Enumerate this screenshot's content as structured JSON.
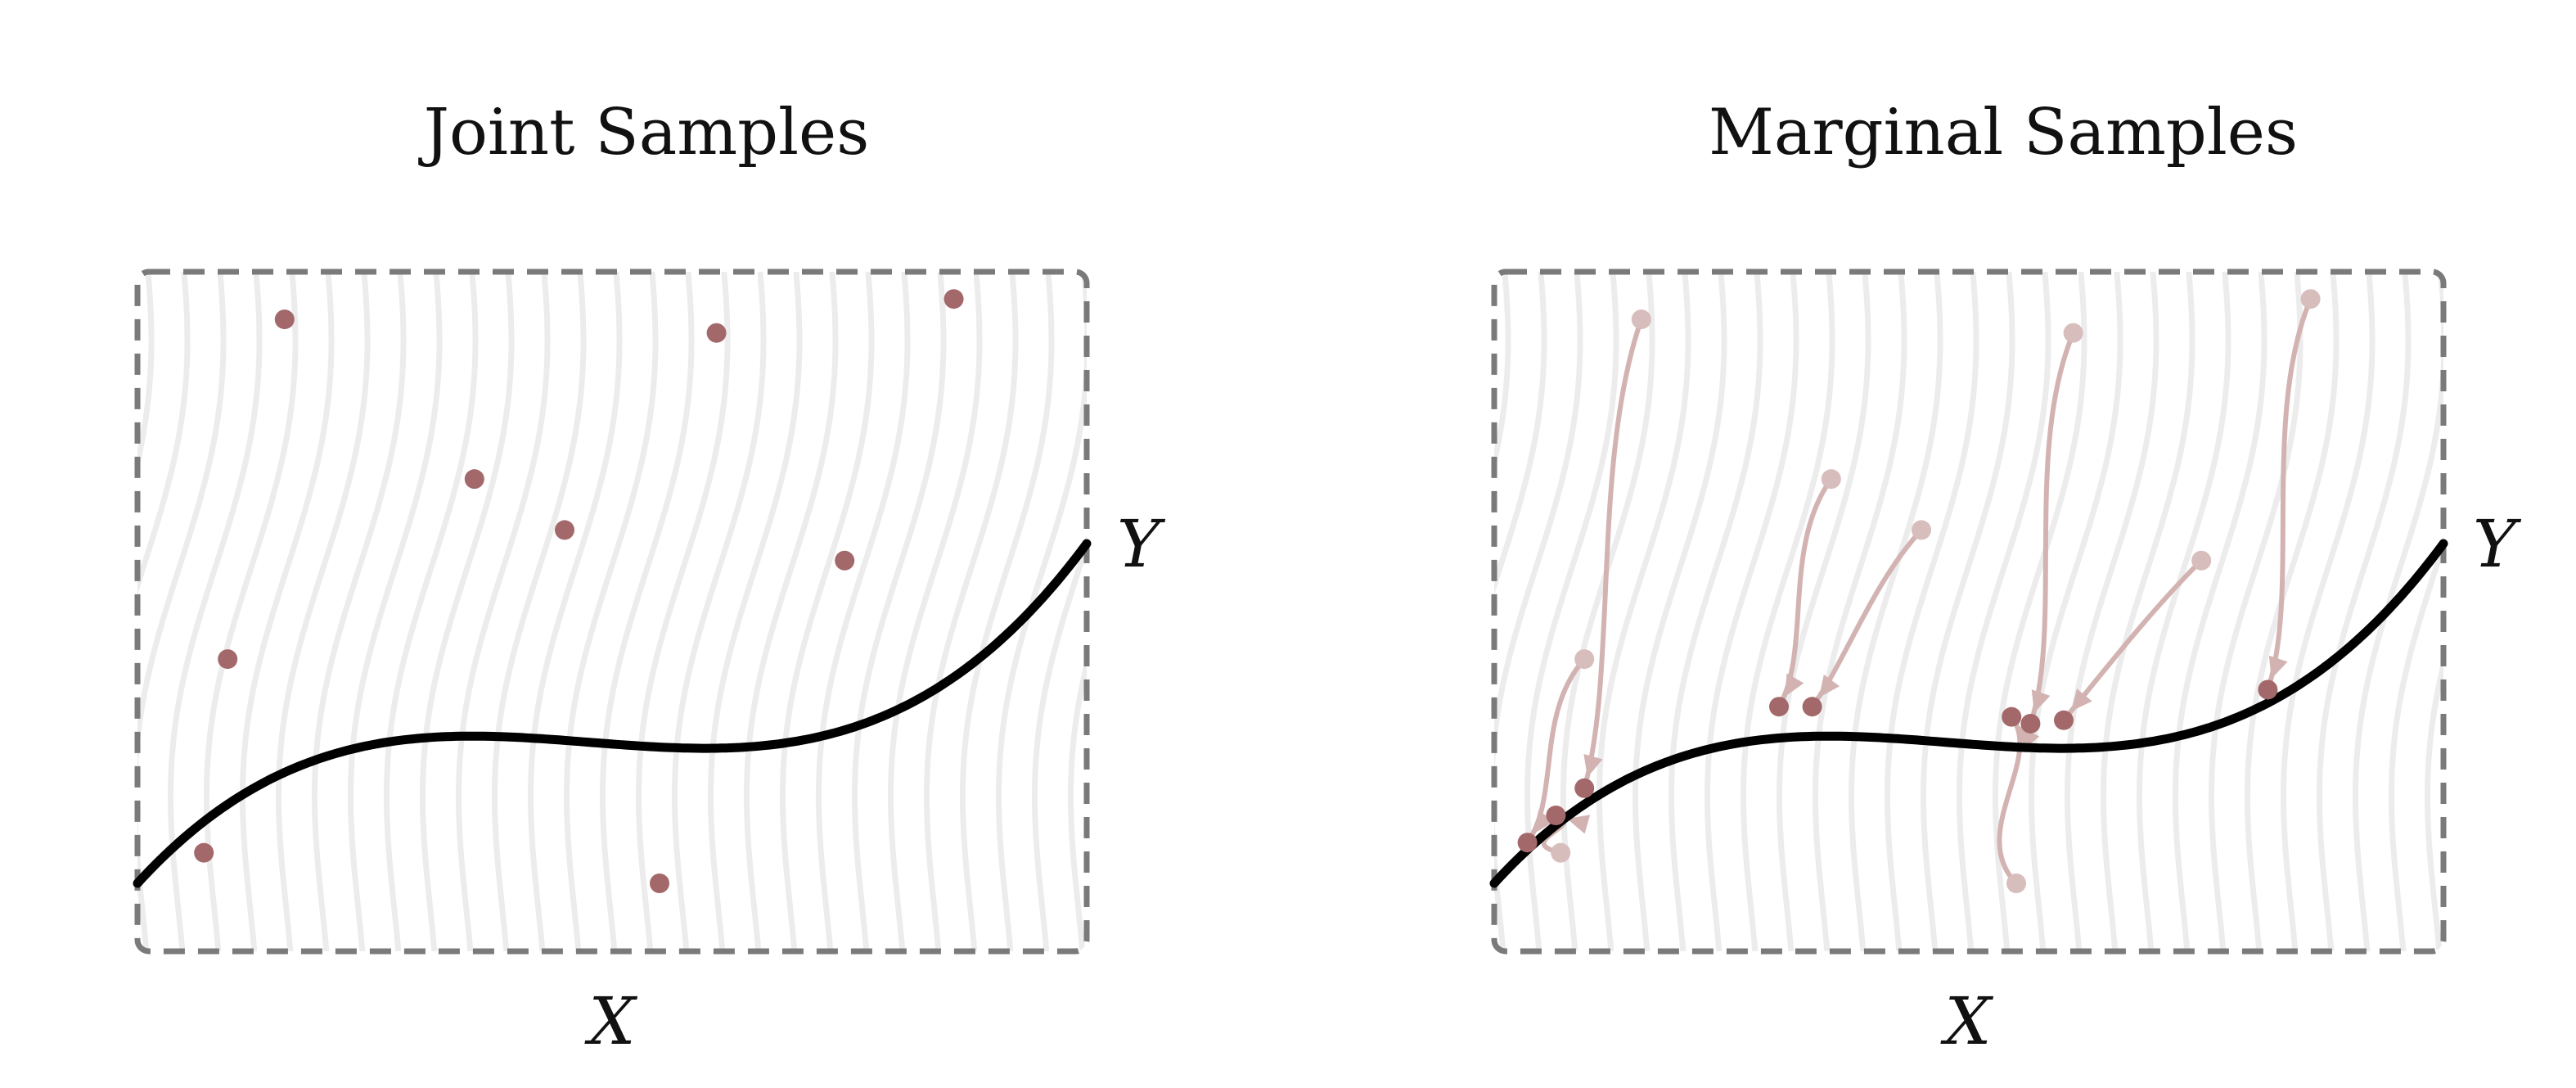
{
  "panels": [
    {
      "id": "joint",
      "title": "Joint Samples",
      "xlabel": "X",
      "ylabel": "Y",
      "points": [
        [
          0.155,
          0.93
        ],
        [
          0.61,
          0.91
        ],
        [
          0.86,
          0.96
        ],
        [
          0.355,
          0.695
        ],
        [
          0.45,
          0.62
        ],
        [
          0.745,
          0.575
        ],
        [
          0.095,
          0.43
        ],
        [
          0.07,
          0.145
        ],
        [
          0.55,
          0.1
        ]
      ]
    },
    {
      "id": "marginal",
      "title": "Marginal Samples",
      "xlabel": "X",
      "ylabel": "Y",
      "moves": [
        {
          "from": [
            0.155,
            0.93
          ],
          "to": [
            0.095,
            0.24
          ]
        },
        {
          "from": [
            0.61,
            0.91
          ],
          "to": [
            0.565,
            0.335
          ]
        },
        {
          "from": [
            0.86,
            0.96
          ],
          "to": [
            0.815,
            0.385
          ]
        },
        {
          "from": [
            0.355,
            0.695
          ],
          "to": [
            0.3,
            0.36
          ]
        },
        {
          "from": [
            0.45,
            0.62
          ],
          "to": [
            0.335,
            0.36
          ]
        },
        {
          "from": [
            0.745,
            0.575
          ],
          "to": [
            0.6,
            0.34
          ]
        },
        {
          "from": [
            0.095,
            0.43
          ],
          "to": [
            0.035,
            0.16
          ]
        },
        {
          "from": [
            0.07,
            0.145
          ],
          "to": [
            0.065,
            0.2
          ]
        },
        {
          "from": [
            0.55,
            0.1
          ],
          "to": [
            0.545,
            0.345
          ]
        }
      ]
    }
  ]
}
